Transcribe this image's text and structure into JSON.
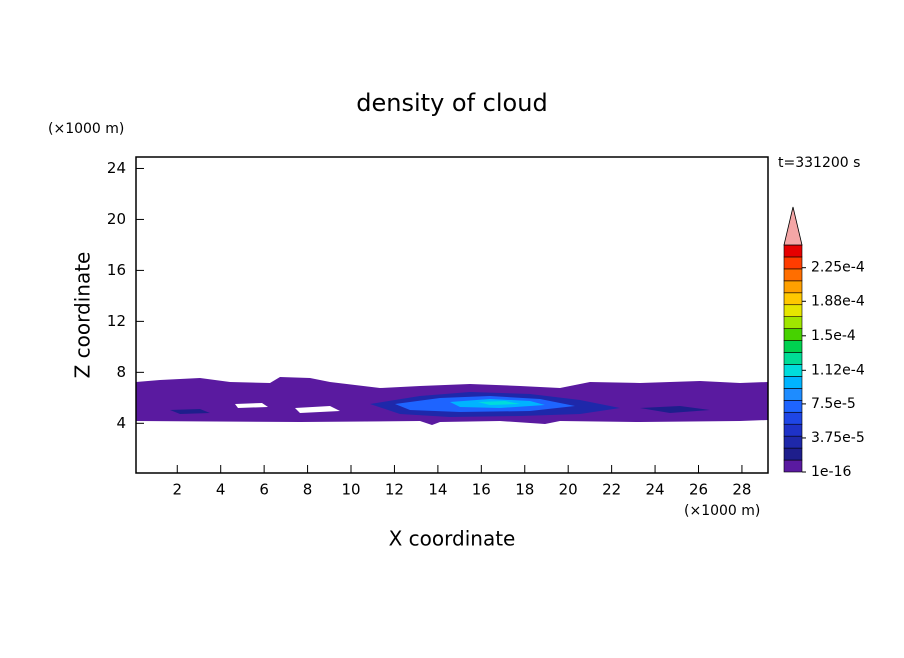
{
  "chart_data": {
    "type": "contour",
    "title": "density of cloud",
    "xlabel": "X coordinate",
    "ylabel": "Z coordinate",
    "x_unit": "(×1000 m)",
    "y_unit": "(×1000 m)",
    "time_label": "t=331200 s",
    "xlim": [
      0.1,
      29.2
    ],
    "xticks": [
      2,
      4,
      6,
      8,
      10,
      12,
      14,
      16,
      18,
      20,
      22,
      24,
      26,
      28
    ],
    "ylim": [
      0.1,
      24.9
    ],
    "yticks": [
      4,
      8,
      12,
      16,
      20,
      24
    ],
    "colorbar": {
      "clim": [
        0,
        0.00025
      ],
      "ticks": [
        1e-16,
        {
          "value": 3.75e-05,
          "label": "3.75e-5"
        },
        {
          "value": 7.5e-05,
          "label": "7.5e-5"
        },
        {
          "value": 0.000112,
          "label": "1.12e-4"
        },
        {
          "value": 0.00015,
          "label": "1.5e-4"
        },
        {
          "value": 0.000188,
          "label": "1.88e-4"
        },
        {
          "value": 0.000225,
          "label": "2.25e-4"
        }
      ],
      "colors": [
        "#5a1aa0",
        "#1e1e8c",
        "#1e28aa",
        "#1e32c8",
        "#1e46e6",
        "#1e64ff",
        "#1e8cff",
        "#00b4ff",
        "#00dcdc",
        "#00dc96",
        "#00d250",
        "#46d200",
        "#a0e600",
        "#e6e600",
        "#ffc800",
        "#ffa000",
        "#ff6e00",
        "#ff3c00",
        "#e60000"
      ],
      "over_color": "#f4a6a6"
    }
  }
}
